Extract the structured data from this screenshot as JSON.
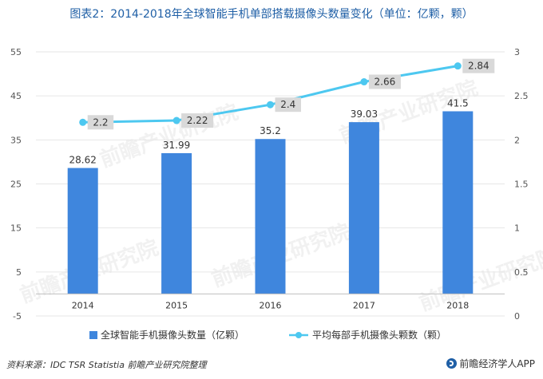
{
  "title": "图表2：2014-2018年全球智能手机单部搭载摄像头数量变化（单位：亿颗，颗）",
  "source_text": "资料来源：IDC TSR  Statistia 前瞻产业研究院整理",
  "brand_text": "前瞻经济学人APP",
  "watermark_text": "前瞻产业研究院",
  "colors": {
    "bar": "#3f86dd",
    "line": "#4dc8f0",
    "title": "#1f5fa6",
    "label_bg": "#d9d9d9",
    "grid": "#e6e6e6"
  },
  "chart_data": {
    "type": "bar",
    "categories": [
      "2014",
      "2015",
      "2016",
      "2017",
      "2018"
    ],
    "series": [
      {
        "name": "全球智能手机摄像头数量（亿颗）",
        "type": "bar",
        "axis": "left",
        "values": [
          28.62,
          31.99,
          35.2,
          39.03,
          41.5
        ]
      },
      {
        "name": "平均每部手机摄像头颗数（颗）",
        "type": "line",
        "axis": "right",
        "values": [
          2.2,
          2.22,
          2.4,
          2.66,
          2.84
        ]
      }
    ],
    "y_left": {
      "lim": [
        -5,
        55
      ],
      "ticks": [
        "55",
        "45",
        "35",
        "25",
        "15",
        "5",
        "-5"
      ]
    },
    "y_right": {
      "lim": [
        0,
        3
      ],
      "ticks": [
        "3",
        "2.5",
        "2",
        "1.5",
        "1",
        "0.5",
        "0"
      ]
    },
    "bar_labels": [
      "28.62",
      "31.99",
      "35.2",
      "39.03",
      "41.5"
    ],
    "line_labels": [
      "2.2",
      "2.22",
      "2.4",
      "2.66",
      "2.84"
    ],
    "grid": true,
    "legend_position": "bottom"
  }
}
